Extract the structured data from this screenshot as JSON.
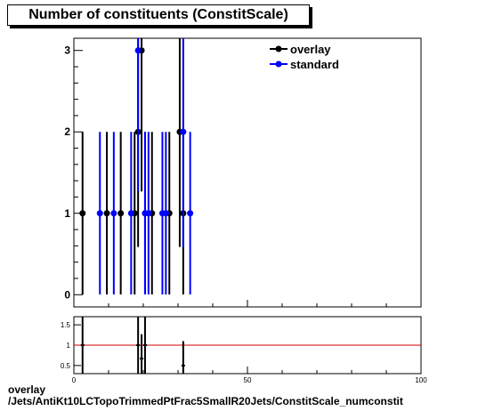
{
  "title": "Number of constituents (ConstitScale)",
  "footer": {
    "line1": "overlay",
    "line2": "/Jets/AntiKt10LCTopoTrimmedPtFrac5SmallR20Jets/ConstitScale_numconstit"
  },
  "colors": {
    "overlay": "#000000",
    "standard": "#0000ff",
    "ratio_line": "#cc0000"
  },
  "chart_data": [
    {
      "type": "scatter",
      "xlim": [
        0,
        100
      ],
      "ylim": [
        -0.15,
        3.15
      ],
      "yticks": [
        0,
        1,
        2,
        3
      ],
      "legend": {
        "placement": "top-right",
        "entries": [
          "overlay",
          "standard"
        ]
      },
      "series": [
        {
          "name": "overlay",
          "points": [
            {
              "x": 2.5,
              "y": 1
            },
            {
              "x": 9.5,
              "y": 1
            },
            {
              "x": 13.5,
              "y": 1
            },
            {
              "x": 17.5,
              "y": 1
            },
            {
              "x": 18.5,
              "y": 2
            },
            {
              "x": 19.5,
              "y": 3
            },
            {
              "x": 20.5,
              "y": 1
            },
            {
              "x": 22.5,
              "y": 1
            },
            {
              "x": 27.5,
              "y": 1
            },
            {
              "x": 30.5,
              "y": 2
            },
            {
              "x": 31.5,
              "y": 1
            }
          ]
        },
        {
          "name": "standard",
          "points": [
            {
              "x": 7.5,
              "y": 1
            },
            {
              "x": 11.5,
              "y": 1
            },
            {
              "x": 16.5,
              "y": 1
            },
            {
              "x": 18.5,
              "y": 3
            },
            {
              "x": 20.5,
              "y": 1
            },
            {
              "x": 21.5,
              "y": 1
            },
            {
              "x": 25.5,
              "y": 1
            },
            {
              "x": 26.5,
              "y": 1
            },
            {
              "x": 31.5,
              "y": 2
            },
            {
              "x": 33.5,
              "y": 1
            }
          ]
        }
      ]
    },
    {
      "type": "scatter",
      "xlim": [
        0,
        100
      ],
      "ylim": [
        0.3,
        1.7
      ],
      "xticks": [
        0,
        50,
        100
      ],
      "yticks": [
        0.5,
        1,
        1.5
      ],
      "reference_line": 1,
      "points": [
        {
          "x": 2.5,
          "y": 1,
          "err": 0.7
        },
        {
          "x": 18.5,
          "y": 1,
          "err": 0.7
        },
        {
          "x": 19.5,
          "y": 0.67,
          "err": 0.6
        },
        {
          "x": 20.5,
          "y": 1,
          "err": 0.7
        },
        {
          "x": 31.5,
          "y": 0.5,
          "err": 0.6
        }
      ]
    }
  ]
}
